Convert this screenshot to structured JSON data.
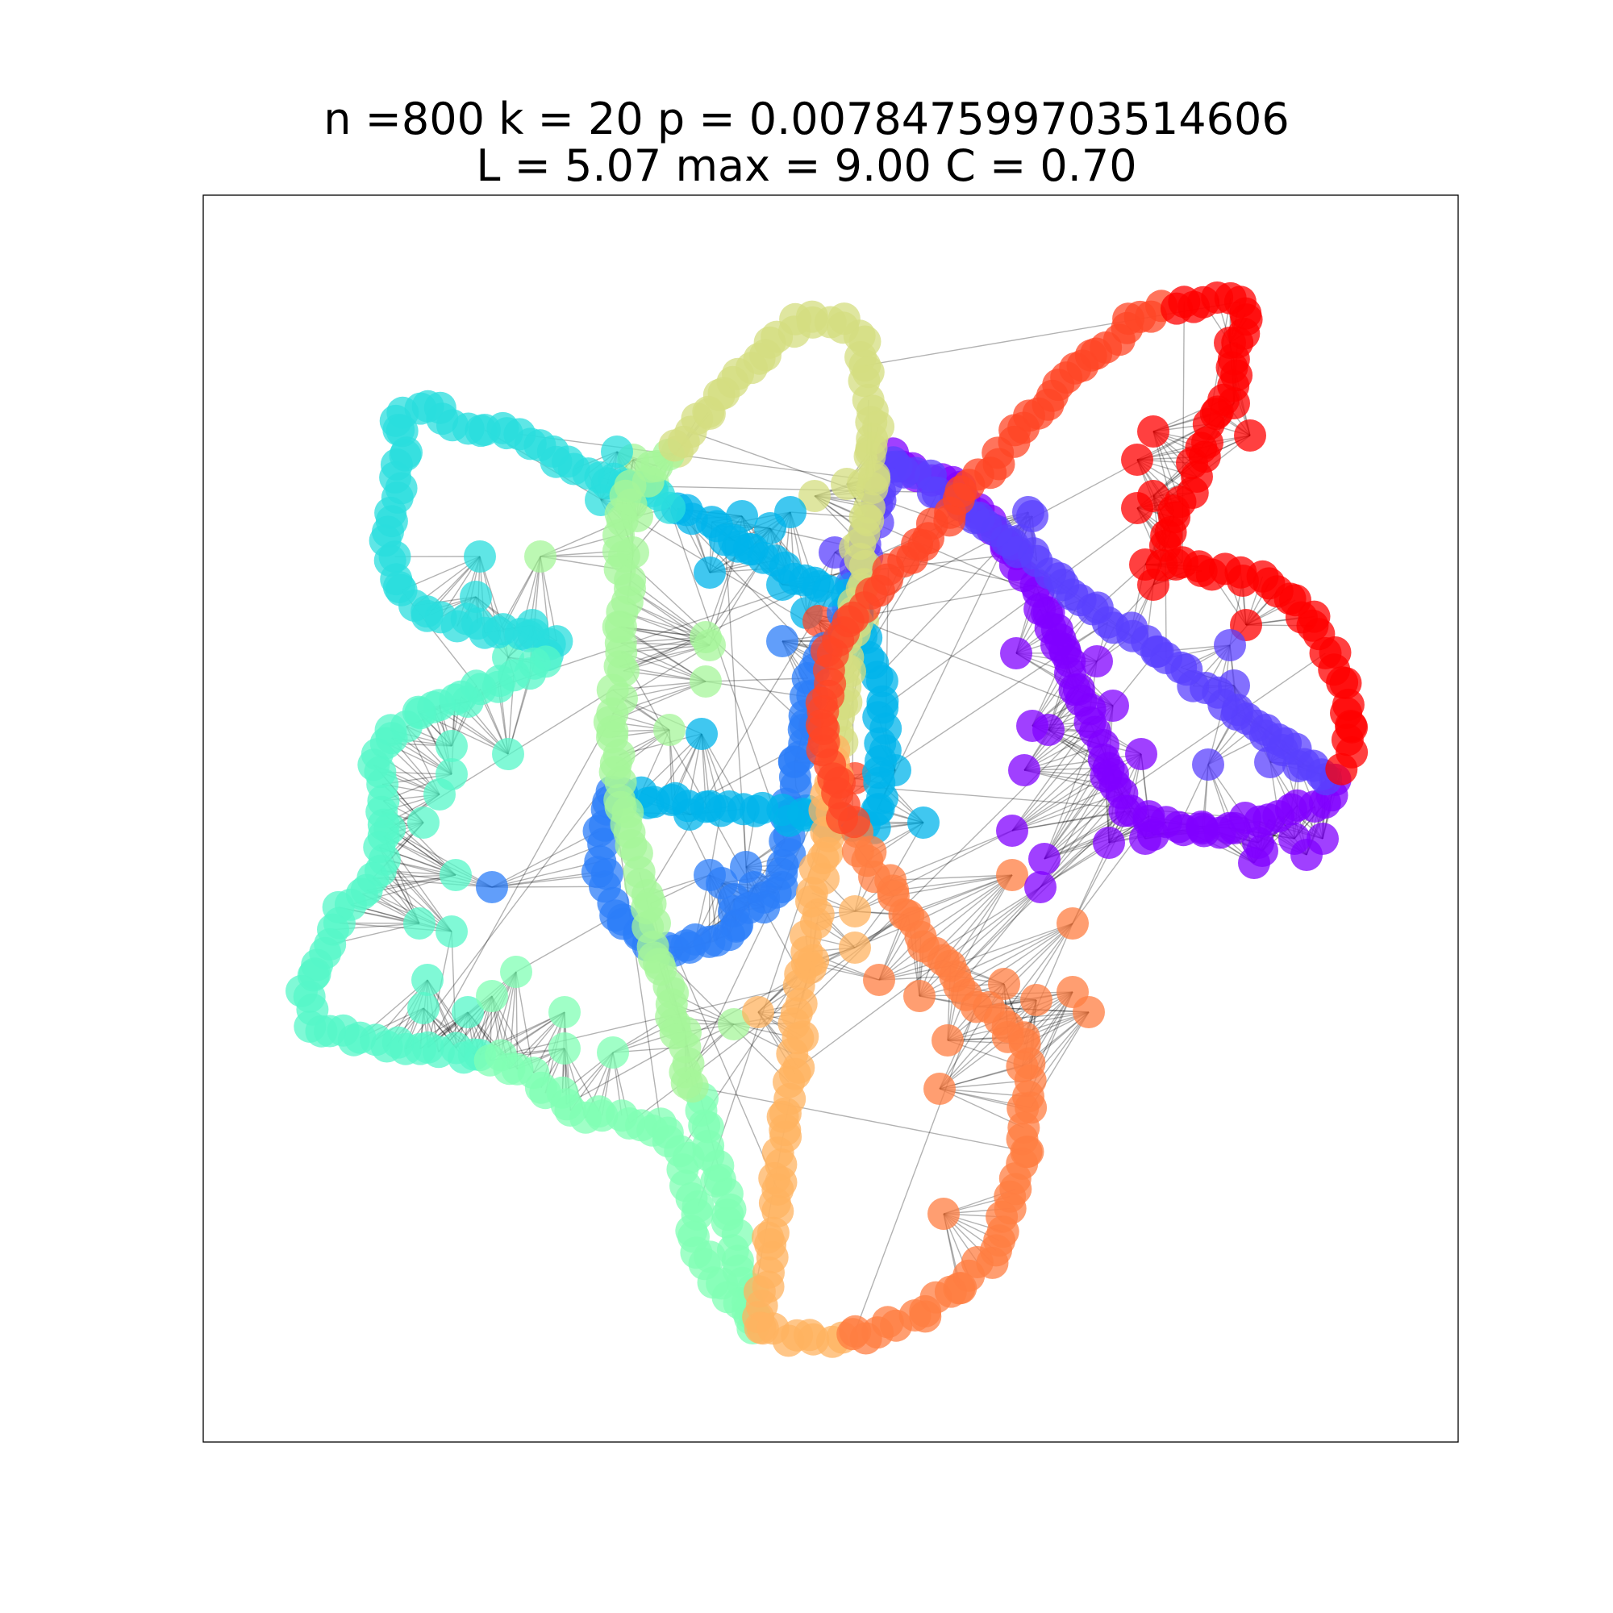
{
  "figure": {
    "title_line_1": "n =800 k = 20 p = 0.007847599703514606",
    "title_line_2": "L = 5.07 max = 9.00 C = 0.70"
  },
  "graph": {
    "type": "network",
    "node_count": 800,
    "colormap": "rainbow",
    "node_alpha": 0.75,
    "edge_color": "#000000",
    "edge_alpha": 0.3,
    "segments": [
      {
        "color": "#8000ff",
        "label": "violet"
      },
      {
        "color": "#5a40fe",
        "label": "indigo"
      },
      {
        "color": "#2c7ef8",
        "label": "blue"
      },
      {
        "color": "#00b4eb",
        "label": "sky"
      },
      {
        "color": "#2adddd",
        "label": "cyan"
      },
      {
        "color": "#56f7c8",
        "label": "aquamarine"
      },
      {
        "color": "#80ffb4",
        "label": "mint"
      },
      {
        "color": "#a6f69a",
        "label": "light-green"
      },
      {
        "color": "#d4dd80",
        "label": "olive"
      },
      {
        "color": "#ffb360",
        "label": "light-orange"
      },
      {
        "color": "#ff7e41",
        "label": "orange"
      },
      {
        "color": "#ff4525",
        "label": "red-orange"
      },
      {
        "color": "#ff0000",
        "label": "red"
      }
    ]
  }
}
